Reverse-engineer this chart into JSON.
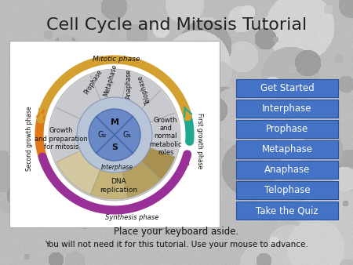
{
  "title": "Cell Cycle and Mitosis Tutorial",
  "title_fontsize": 16,
  "title_color": "#222222",
  "buttons": [
    {
      "label": "Get Started",
      "color": "#4472c4"
    },
    {
      "label": "Interphase",
      "color": "#4472c4"
    },
    {
      "label": "Prophase",
      "color": "#4472c4"
    },
    {
      "label": "Metaphase",
      "color": "#4472c4"
    },
    {
      "label": "Anaphase",
      "color": "#4472c4"
    },
    {
      "label": "Telophase",
      "color": "#4472c4"
    },
    {
      "label": "Take the Quiz",
      "color": "#4472c4"
    }
  ],
  "button_text_color": "#ffffff",
  "button_fontsize": 8.5,
  "footer_line1": "Place your keyboard aside.",
  "footer_line2": "You will not need it for this tutorial. Use your mouse to advance.",
  "footer_fontsize": 7.5,
  "footer_color": "#111111",
  "wedge_colors": [
    "#d4c8a0",
    "#c4b47a",
    "#b4a060",
    "#a89050"
  ],
  "interphase_color": "#c8cad0",
  "inner_circle_color": "#b8c4d8",
  "center_circle_color": "#6080be",
  "teal_color": "#20a890",
  "purple_color": "#983098",
  "orange_color": "#e07818",
  "gold_color": "#d4a030",
  "diagram_labels": {
    "mitotic_phase": "Mitotic phase",
    "prophase": "Prophase",
    "metaphase": "Metaphase",
    "anaphase": "Anaphase",
    "telophase": "Telophase",
    "interphase": "Interphase",
    "synthesis": "Synthesis phase",
    "first_growth": "First growth phase",
    "second_growth": "Second growth phase",
    "dna_replication": "DNA\nreplication",
    "growth_prep": "Growth\nand preparation\nfor mitosis",
    "growth_normal": "Growth\nand\nnormal\nmetabolic\nroles",
    "M": "M",
    "G1": "G₁",
    "G2": "G₂",
    "S": "S"
  }
}
